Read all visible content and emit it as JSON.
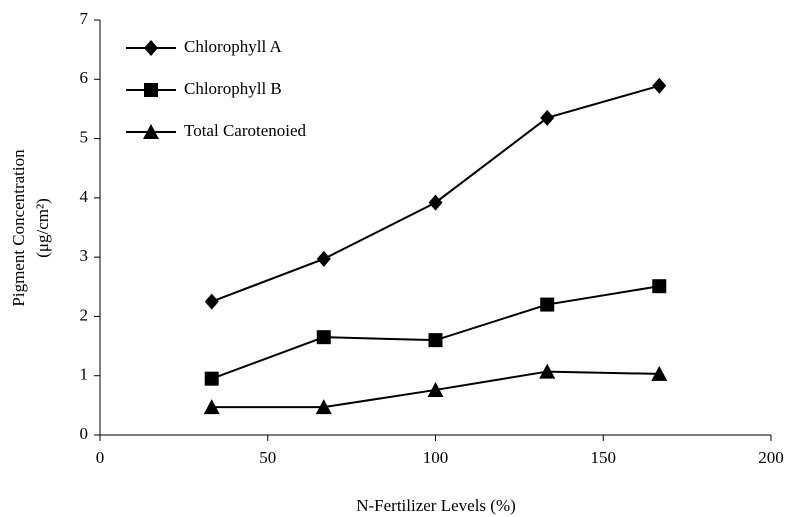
{
  "chart_data": {
    "type": "line",
    "xlabel": "N-Fertilizer Levels (%)",
    "ylabel": "Pigment Concentration",
    "ylabel_unit": "(μg/cm²)",
    "x": [
      33.3,
      66.7,
      100,
      133.3,
      166.7
    ],
    "series": [
      {
        "name": "Chlorophyll A",
        "color": "#000000",
        "marker": "diamond",
        "values": [
          2.25,
          2.97,
          3.92,
          5.35,
          5.89
        ]
      },
      {
        "name": "Chlorophyll B",
        "color": "#000000",
        "marker": "square",
        "values": [
          0.95,
          1.65,
          1.6,
          2.2,
          2.51
        ]
      },
      {
        "name": "Total Carotenoied",
        "color": "#000000",
        "marker": "triangle",
        "values": [
          0.47,
          0.47,
          0.76,
          1.07,
          1.03
        ]
      }
    ],
    "xlim": [
      0,
      200
    ],
    "xticks": [
      0,
      50,
      100,
      150,
      200
    ],
    "ylim": [
      0,
      7
    ],
    "yticks": [
      0,
      1,
      2,
      3,
      4,
      5,
      6,
      7
    ],
    "grid": false,
    "legend": "upper-left"
  }
}
